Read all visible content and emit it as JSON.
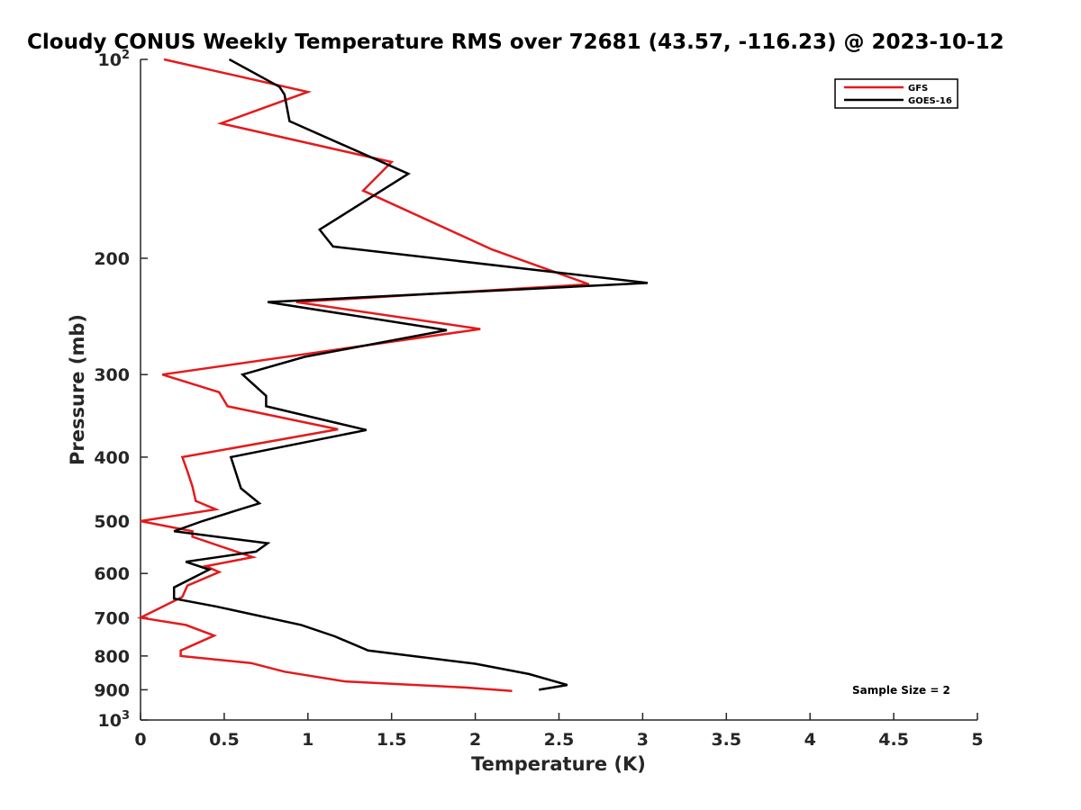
{
  "chart_data": {
    "type": "line",
    "title": "Cloudy CONUS Weekly Temperature RMS over 72681 (43.57, -116.23) @ 2023-10-12",
    "xlabel": "Temperature (K)",
    "ylabel": "Pressure (mb)",
    "xlim": [
      0,
      5
    ],
    "ylim": [
      100,
      1000
    ],
    "y_scale": "log",
    "y_reversed": true,
    "grid": false,
    "legend_position": "top-right",
    "x_ticks": [
      "0",
      "0.5",
      "1",
      "1.5",
      "2",
      "2.5",
      "3",
      "3.5",
      "4",
      "4.5",
      "5"
    ],
    "y_ticks": [
      {
        "value": 100,
        "base": "10",
        "exp": "2"
      },
      {
        "value": 200,
        "label": "200"
      },
      {
        "value": 300,
        "label": "300"
      },
      {
        "value": 400,
        "label": "400"
      },
      {
        "value": 500,
        "label": "500"
      },
      {
        "value": 600,
        "label": "600"
      },
      {
        "value": 700,
        "label": "700"
      },
      {
        "value": 800,
        "label": "800"
      },
      {
        "value": 900,
        "label": "900"
      },
      {
        "value": 1000,
        "base": "10",
        "exp": "3"
      }
    ],
    "annotation": "Sample Size = 2",
    "series": [
      {
        "name": "GFS",
        "color": "#e41a1c",
        "points": [
          [
            0.14,
            100
          ],
          [
            1.0,
            112
          ],
          [
            0.48,
            125
          ],
          [
            1.5,
            143
          ],
          [
            1.33,
            158
          ],
          [
            2.1,
            194
          ],
          [
            2.68,
            219
          ],
          [
            0.93,
            233
          ],
          [
            2.03,
            256
          ],
          [
            0.13,
            300
          ],
          [
            0.47,
            319
          ],
          [
            0.52,
            335
          ],
          [
            1.18,
            363
          ],
          [
            0.25,
            400
          ],
          [
            0.28,
            420
          ],
          [
            0.31,
            443
          ],
          [
            0.33,
            466
          ],
          [
            0.45,
            480
          ],
          [
            0.0,
            500
          ],
          [
            0.31,
            518
          ],
          [
            0.31,
            528
          ],
          [
            0.67,
            567
          ],
          [
            0.39,
            585
          ],
          [
            0.47,
            597
          ],
          [
            0.28,
            626
          ],
          [
            0.25,
            651
          ],
          [
            0.0,
            700
          ],
          [
            0.27,
            718
          ],
          [
            0.44,
            745
          ],
          [
            0.24,
            785
          ],
          [
            0.24,
            800
          ],
          [
            0.66,
            820
          ],
          [
            0.86,
            845
          ],
          [
            1.22,
            874
          ],
          [
            1.94,
            893
          ],
          [
            2.22,
            904
          ]
        ]
      },
      {
        "name": "GOES-16",
        "color": "#000000",
        "points": [
          [
            0.53,
            100
          ],
          [
            0.83,
            110
          ],
          [
            0.86,
            113
          ],
          [
            0.89,
            124
          ],
          [
            1.6,
            149
          ],
          [
            1.07,
            181
          ],
          [
            1.15,
            192
          ],
          [
            3.03,
            218
          ],
          [
            0.76,
            233
          ],
          [
            1.83,
            257
          ],
          [
            0.98,
            282
          ],
          [
            0.61,
            300
          ],
          [
            0.75,
            323
          ],
          [
            0.75,
            335
          ],
          [
            1.35,
            364
          ],
          [
            0.54,
            400
          ],
          [
            0.6,
            446
          ],
          [
            0.71,
            470
          ],
          [
            0.37,
            500
          ],
          [
            0.2,
            518
          ],
          [
            0.76,
            540
          ],
          [
            0.69,
            556
          ],
          [
            0.27,
            576
          ],
          [
            0.41,
            592
          ],
          [
            0.2,
            630
          ],
          [
            0.2,
            655
          ],
          [
            0.45,
            673
          ],
          [
            0.96,
            718
          ],
          [
            1.16,
            747
          ],
          [
            1.36,
            785
          ],
          [
            2.0,
            822
          ],
          [
            2.32,
            852
          ],
          [
            2.55,
            885
          ],
          [
            2.38,
            900
          ]
        ]
      }
    ]
  }
}
